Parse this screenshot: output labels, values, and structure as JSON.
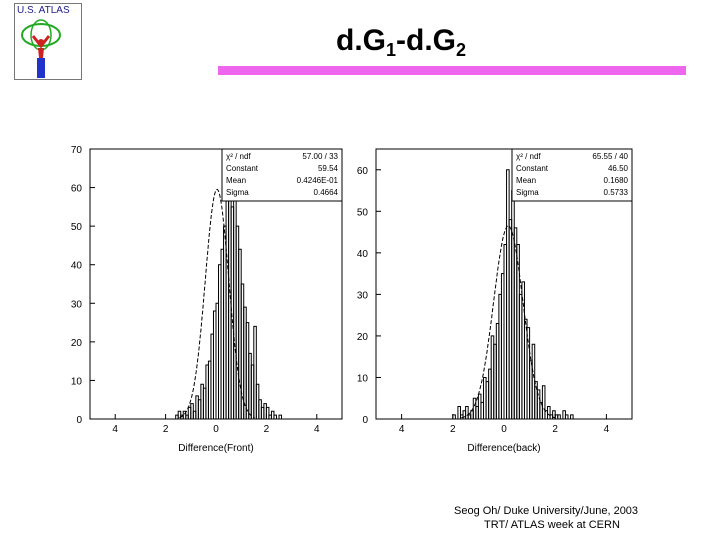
{
  "logo": {
    "text": "U.S. ATLAS"
  },
  "title": {
    "main": "d.G",
    "sub1": "1",
    "dash": "-d.G",
    "sub2": "2"
  },
  "colors": {
    "accent_bar": "#ee66ee",
    "logo_text": "#1b1b8c"
  },
  "footer": {
    "line1": "Seog Oh/ Duke University/June, 2003",
    "line2": "TRT/ ATLAS week at CERN"
  },
  "chart_data": [
    {
      "type": "histogram",
      "xlabel": "Difference(Front)",
      "xlim": [
        -5,
        5
      ],
      "ylim": [
        0,
        70
      ],
      "x_ticks": [
        -4,
        -2,
        0,
        2,
        4
      ],
      "x_tick_labels": [
        "4",
        "2",
        "0",
        "2",
        "4"
      ],
      "y_ticks": [
        0,
        10,
        20,
        30,
        40,
        50,
        60,
        70
      ],
      "y_tick_labels": [
        "0",
        "10",
        "20",
        "30",
        "40",
        "50",
        "60",
        "70"
      ],
      "stats": [
        {
          "label": "χ² / ndf",
          "value": "57.00   /   33"
        },
        {
          "label": "Constant",
          "value": "59.54"
        },
        {
          "label": "Mean",
          "value": "0.4246E-01"
        },
        {
          "label": "Sigma",
          "value": "0.4664"
        }
      ],
      "fit": {
        "constant": 59.54,
        "mean": 0.04246,
        "sigma": 0.4664
      },
      "bin_width": 0.1,
      "bins_start": -1.6,
      "counts": [
        1,
        2,
        1,
        2,
        1,
        3,
        4,
        2,
        6,
        5,
        9,
        8,
        14,
        15,
        22,
        28,
        30,
        40,
        44,
        50,
        58,
        65,
        55,
        60,
        50,
        44,
        35,
        29,
        25,
        17,
        14,
        24,
        9,
        5,
        3,
        4,
        3,
        1,
        2,
        1,
        0,
        1,
        0,
        0
      ]
    },
    {
      "type": "histogram",
      "xlabel": "Difference(back)",
      "xlim": [
        -5,
        5
      ],
      "ylim": [
        0,
        65
      ],
      "x_ticks": [
        -4,
        -2,
        0,
        2,
        4
      ],
      "x_tick_labels": [
        "4",
        "2",
        "0",
        "2",
        "4"
      ],
      "y_ticks": [
        0,
        10,
        20,
        30,
        40,
        50,
        60
      ],
      "y_tick_labels": [
        "0",
        "10",
        "20",
        "30",
        "40",
        "50",
        "60"
      ],
      "stats": [
        {
          "label": "χ² / ndf",
          "value": "65.55   /   40"
        },
        {
          "label": "Constant",
          "value": "46.50"
        },
        {
          "label": "Mean",
          "value": "0.1680"
        },
        {
          "label": "Sigma",
          "value": "0.5733"
        }
      ],
      "fit": {
        "constant": 46.5,
        "mean": 0.168,
        "sigma": 0.5733
      },
      "bin_width": 0.1,
      "bins_start": -2.0,
      "counts": [
        1,
        0,
        3,
        1,
        2,
        3,
        1,
        2,
        5,
        3,
        6,
        4,
        10,
        9,
        12,
        20,
        18,
        23,
        30,
        35,
        42,
        60,
        48,
        55,
        46,
        42,
        30,
        33,
        24,
        22,
        14,
        18,
        9,
        7,
        4,
        8,
        2,
        3,
        1,
        2,
        1,
        1,
        0,
        2,
        1,
        0,
        1
      ]
    }
  ]
}
